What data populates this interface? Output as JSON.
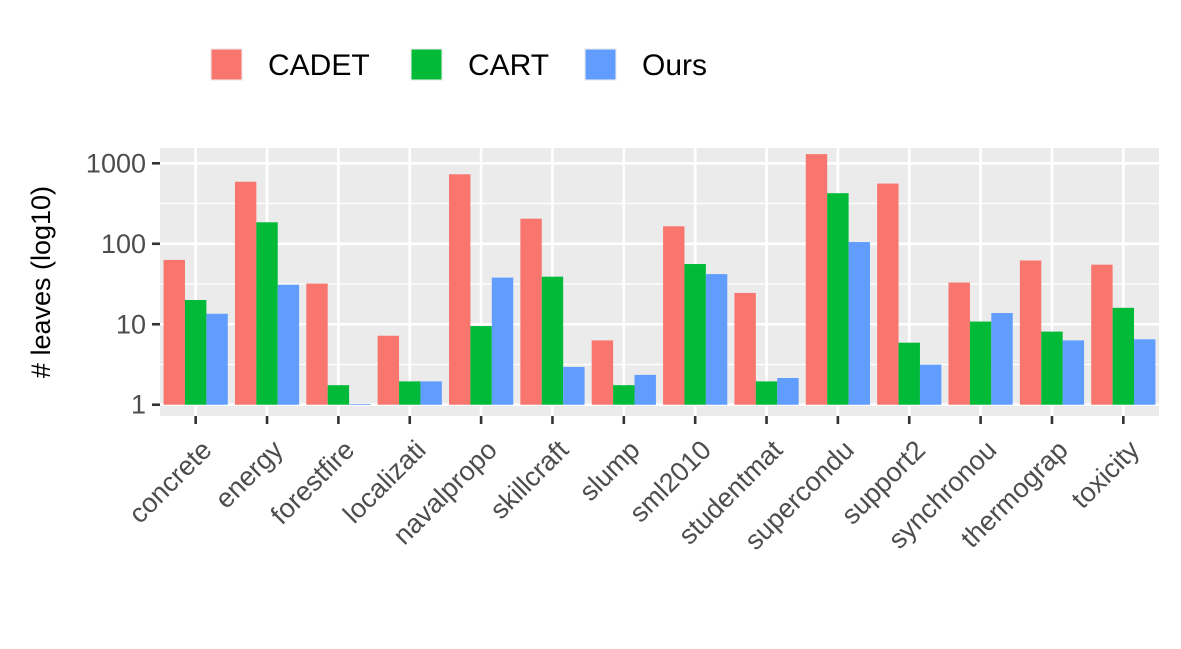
{
  "chart_data": {
    "type": "bar",
    "title": "",
    "xlabel": "",
    "ylabel": "# leaves (log10)",
    "y_scale": "log10",
    "ylim": [
      1,
      1300
    ],
    "y_ticks": [
      1,
      10,
      100,
      1000
    ],
    "y_tick_labels": [
      "1",
      "10",
      "100",
      "1000"
    ],
    "grid": true,
    "legend_position": "top",
    "categories": [
      "concrete",
      "energy",
      "forestfire",
      "localizati",
      "navalpropo",
      "skillcraft",
      "slump",
      "sml2010",
      "studentmat",
      "supercondu",
      "support2",
      "synchronou",
      "thermograp",
      "toxicity"
    ],
    "series": [
      {
        "name": "CADET",
        "color": "#F8766D",
        "values": [
          63,
          590,
          32,
          7.2,
          730,
          205,
          6.3,
          165,
          24.5,
          1300,
          560,
          33,
          62,
          55
        ]
      },
      {
        "name": "CART",
        "color": "#00BA38",
        "values": [
          20,
          185,
          1.75,
          1.95,
          9.5,
          39,
          1.75,
          56,
          1.95,
          425,
          5.9,
          10.8,
          8.1,
          16
        ]
      },
      {
        "name": "Ours",
        "color": "#619CFF",
        "values": [
          13.5,
          31,
          1.02,
          1.95,
          38,
          2.95,
          2.35,
          42,
          2.15,
          105,
          3.15,
          13.8,
          6.3,
          6.5
        ]
      }
    ]
  }
}
